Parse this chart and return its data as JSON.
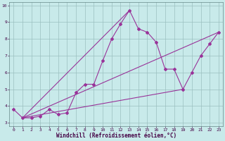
{
  "xlabel": "Windchill (Refroidissement éolien,°C)",
  "xlim": [
    -0.5,
    23.5
  ],
  "ylim": [
    2.8,
    10.2
  ],
  "yticks": [
    3,
    4,
    5,
    6,
    7,
    8,
    9,
    10
  ],
  "xticks": [
    0,
    1,
    2,
    3,
    4,
    5,
    6,
    7,
    8,
    9,
    10,
    11,
    12,
    13,
    14,
    15,
    16,
    17,
    18,
    19,
    20,
    21,
    22,
    23
  ],
  "bg_color": "#c8eaea",
  "line_color": "#993399",
  "grid_color": "#9bbfbf",
  "series1_x": [
    0,
    1,
    2,
    3,
    4,
    5,
    6,
    7,
    8,
    9,
    10,
    11,
    12,
    13,
    14,
    15,
    16,
    17,
    18,
    19,
    20,
    21,
    22,
    23
  ],
  "series1_y": [
    3.8,
    3.3,
    3.3,
    3.4,
    3.8,
    3.5,
    3.6,
    4.8,
    5.3,
    5.3,
    6.7,
    8.0,
    8.9,
    9.7,
    8.6,
    8.4,
    7.8,
    6.2,
    6.2,
    5.0,
    6.0,
    7.0,
    7.7,
    8.4
  ],
  "series2_x": [
    1,
    23
  ],
  "series2_y": [
    3.3,
    8.4
  ],
  "series3_x": [
    1,
    13
  ],
  "series3_y": [
    3.3,
    9.7
  ],
  "series4_x": [
    1,
    19
  ],
  "series4_y": [
    3.3,
    5.0
  ],
  "marker": "D",
  "markersize": 2.0,
  "linewidth": 0.8,
  "tick_fontsize": 4.5,
  "label_fontsize": 5.5
}
